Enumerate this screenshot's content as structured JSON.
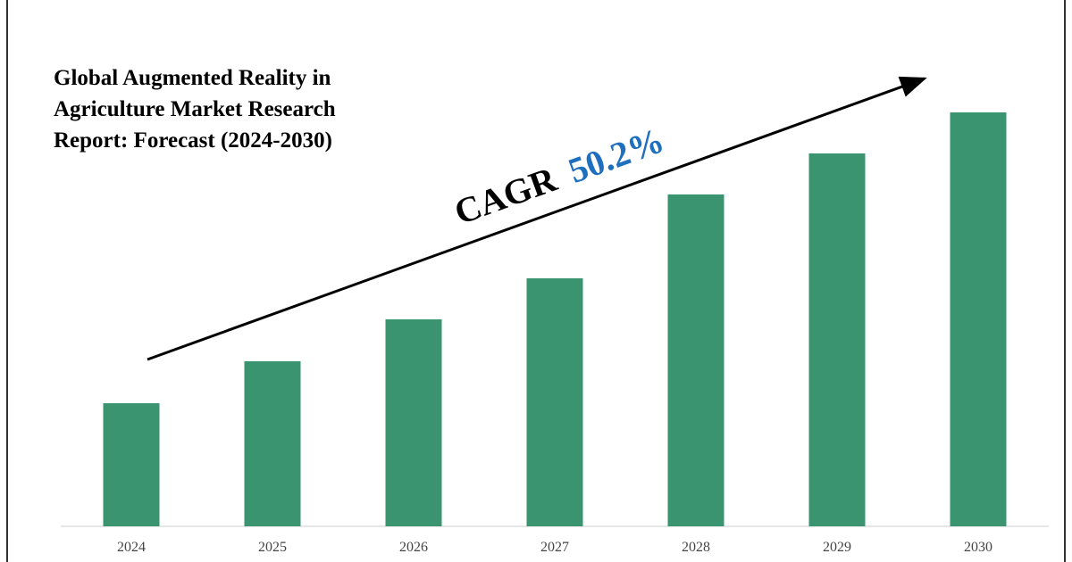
{
  "chart_data": {
    "type": "bar",
    "title": [
      "Global Augmented Reality in",
      "Agriculture Market Research",
      "Report: Forecast (2024-2030)"
    ],
    "annotation": {
      "label": "CAGR",
      "value": "50.2%"
    },
    "categories": [
      "2024",
      "2025",
      "2026",
      "2027",
      "2028",
      "2029",
      "2030"
    ],
    "values": [
      138,
      185,
      232,
      278,
      372,
      418,
      464
    ],
    "color": "#3a9470",
    "ylim": [
      0,
      500
    ]
  }
}
